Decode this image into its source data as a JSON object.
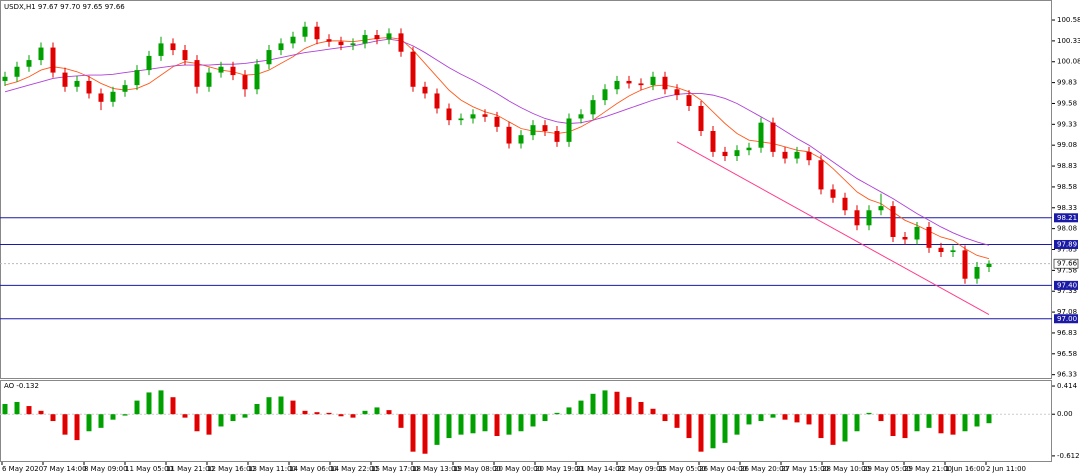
{
  "chart_data": [
    {
      "type": "candlestick",
      "title": "USDX,H1  97.67 97.70 97.65 97.66",
      "ylim": [
        96.29,
        100.82
      ],
      "yticks": [
        100.58,
        100.33,
        100.08,
        99.83,
        99.58,
        99.33,
        99.08,
        98.83,
        98.58,
        98.33,
        98.08,
        97.83,
        97.58,
        97.33,
        97.08,
        96.83,
        96.58,
        96.33
      ],
      "x_labels": [
        "6 May 2020",
        "7 May 14:00",
        "8 May 09:00",
        "11 May 05:00",
        "11 May 21:00",
        "12 May 16:00",
        "13 May 11:00",
        "14 May 06:00",
        "14 May 22:00",
        "15 May 17:00",
        "18 May 13:00",
        "19 May 08:00",
        "20 May 00:00",
        "20 May 19:00",
        "21 May 14:00",
        "22 May 09:00",
        "25 May 05:00",
        "26 May 04:00",
        "26 May 20:00",
        "27 May 15:00",
        "28 May 10:00",
        "29 May 05:00",
        "29 May 21:00",
        "1 Jun 16:00",
        "2 Jun 11:00"
      ],
      "up_color": "#00a000",
      "down_color": "#e00000",
      "candles": [
        [
          99.85,
          99.96,
          99.79,
          99.9
        ],
        [
          99.9,
          100.08,
          99.84,
          100.02
        ],
        [
          100.02,
          100.16,
          99.96,
          100.1
        ],
        [
          100.1,
          100.31,
          100.04,
          100.25
        ],
        [
          100.25,
          100.31,
          99.89,
          99.95
        ],
        [
          99.95,
          100.01,
          99.72,
          99.78
        ],
        [
          99.78,
          99.91,
          99.72,
          99.85
        ],
        [
          99.85,
          99.91,
          99.64,
          99.7
        ],
        [
          99.7,
          99.76,
          99.5,
          99.6
        ],
        [
          99.6,
          99.78,
          99.54,
          99.72
        ],
        [
          99.72,
          99.86,
          99.66,
          99.8
        ],
        [
          99.8,
          100.04,
          99.74,
          99.98
        ],
        [
          99.98,
          100.21,
          99.92,
          100.15
        ],
        [
          100.15,
          100.38,
          100.09,
          100.3
        ],
        [
          100.3,
          100.36,
          100.16,
          100.22
        ],
        [
          100.22,
          100.28,
          100.04,
          100.1
        ],
        [
          100.1,
          100.16,
          99.7,
          99.78
        ],
        [
          99.78,
          100.01,
          99.72,
          99.95
        ],
        [
          99.95,
          100.08,
          99.89,
          100.02
        ],
        [
          100.02,
          100.08,
          99.86,
          99.92
        ],
        [
          99.92,
          99.98,
          99.66,
          99.75
        ],
        [
          99.75,
          100.11,
          99.69,
          100.05
        ],
        [
          100.05,
          100.28,
          99.99,
          100.22
        ],
        [
          100.22,
          100.36,
          100.16,
          100.3
        ],
        [
          100.3,
          100.44,
          100.24,
          100.38
        ],
        [
          100.38,
          100.56,
          100.32,
          100.5
        ],
        [
          100.5,
          100.56,
          100.29,
          100.35
        ],
        [
          100.35,
          100.41,
          100.26,
          100.32
        ],
        [
          100.32,
          100.38,
          100.22,
          100.28
        ],
        [
          100.28,
          100.36,
          100.22,
          100.3
        ],
        [
          100.3,
          100.46,
          100.24,
          100.4
        ],
        [
          100.4,
          100.46,
          100.29,
          100.35
        ],
        [
          100.35,
          100.48,
          100.29,
          100.42
        ],
        [
          100.42,
          100.48,
          100.14,
          100.2
        ],
        [
          100.2,
          100.26,
          99.72,
          99.78
        ],
        [
          99.78,
          99.84,
          99.64,
          99.7
        ],
        [
          99.7,
          99.76,
          99.46,
          99.52
        ],
        [
          99.52,
          99.58,
          99.32,
          99.38
        ],
        [
          99.38,
          99.46,
          99.32,
          99.4
        ],
        [
          99.4,
          99.51,
          99.34,
          99.45
        ],
        [
          99.45,
          99.51,
          99.36,
          99.42
        ],
        [
          99.42,
          99.48,
          99.24,
          99.3
        ],
        [
          99.3,
          99.36,
          99.04,
          99.1
        ],
        [
          99.1,
          99.26,
          99.04,
          99.2
        ],
        [
          99.2,
          99.38,
          99.14,
          99.32
        ],
        [
          99.32,
          99.38,
          99.19,
          99.25
        ],
        [
          99.25,
          99.31,
          99.06,
          99.12
        ],
        [
          99.12,
          99.46,
          99.06,
          99.4
        ],
        [
          99.4,
          99.51,
          99.34,
          99.45
        ],
        [
          99.45,
          99.68,
          99.39,
          99.62
        ],
        [
          99.62,
          99.81,
          99.56,
          99.75
        ],
        [
          99.75,
          99.91,
          99.69,
          99.85
        ],
        [
          99.85,
          99.91,
          99.76,
          99.82
        ],
        [
          99.82,
          99.88,
          99.74,
          99.8
        ],
        [
          99.8,
          99.96,
          99.74,
          99.9
        ],
        [
          99.9,
          99.96,
          99.69,
          99.75
        ],
        [
          99.75,
          99.81,
          99.62,
          99.68
        ],
        [
          99.68,
          99.74,
          99.49,
          99.55
        ],
        [
          99.55,
          99.61,
          99.19,
          99.25
        ],
        [
          99.25,
          99.31,
          98.94,
          99.0
        ],
        [
          99.0,
          99.06,
          98.89,
          98.95
        ],
        [
          98.95,
          99.08,
          98.89,
          99.02
        ],
        [
          99.02,
          99.11,
          98.96,
          99.05
        ],
        [
          99.05,
          99.41,
          98.99,
          99.35
        ],
        [
          99.35,
          99.41,
          98.94,
          99.0
        ],
        [
          99.0,
          99.06,
          98.86,
          98.92
        ],
        [
          98.92,
          99.06,
          98.86,
          99.0
        ],
        [
          99.0,
          99.06,
          98.84,
          98.9
        ],
        [
          98.9,
          98.96,
          98.49,
          98.55
        ],
        [
          98.55,
          98.61,
          98.39,
          98.45
        ],
        [
          98.45,
          98.51,
          98.24,
          98.3
        ],
        [
          98.3,
          98.36,
          98.06,
          98.12
        ],
        [
          98.12,
          98.36,
          98.06,
          98.3
        ],
        [
          98.3,
          98.5,
          98.24,
          98.35
        ],
        [
          98.35,
          98.41,
          97.92,
          97.98
        ],
        [
          97.98,
          98.04,
          97.89,
          97.95
        ],
        [
          97.95,
          98.16,
          97.89,
          98.1
        ],
        [
          98.1,
          98.16,
          97.79,
          97.85
        ],
        [
          97.85,
          97.91,
          97.74,
          97.8
        ],
        [
          97.8,
          97.88,
          97.74,
          97.82
        ],
        [
          97.82,
          97.88,
          97.42,
          97.48
        ],
        [
          97.48,
          97.68,
          97.42,
          97.62
        ],
        [
          97.62,
          97.7,
          97.56,
          97.66
        ]
      ],
      "series": [
        {
          "color": "#ff5a1e",
          "values": [
            99.8,
            99.84,
            99.9,
            99.98,
            100.02,
            100.0,
            99.96,
            99.9,
            99.82,
            99.76,
            99.74,
            99.76,
            99.82,
            99.92,
            100.02,
            100.08,
            100.06,
            100.02,
            99.98,
            99.96,
            99.92,
            99.93,
            99.98,
            100.06,
            100.14,
            100.24,
            100.3,
            100.33,
            100.33,
            100.32,
            100.34,
            100.36,
            100.37,
            100.35,
            100.22,
            100.06,
            99.9,
            99.74,
            99.62,
            99.54,
            99.48,
            99.44,
            99.36,
            99.28,
            99.25,
            99.24,
            99.22,
            99.24,
            99.3,
            99.38,
            99.48,
            99.58,
            99.67,
            99.74,
            99.79,
            99.8,
            99.77,
            99.72,
            99.62,
            99.48,
            99.34,
            99.22,
            99.14,
            99.12,
            99.1,
            99.06,
            99.02,
            99.0,
            98.92,
            98.8,
            98.66,
            98.52,
            98.43,
            98.38,
            98.28,
            98.18,
            98.12,
            98.05,
            97.98,
            97.94,
            97.84,
            97.76,
            97.72
          ]
        },
        {
          "color": "#b040d8",
          "values": [
            99.72,
            99.76,
            99.8,
            99.84,
            99.88,
            99.9,
            99.91,
            99.92,
            99.92,
            99.93,
            99.95,
            99.97,
            99.99,
            100.01,
            100.03,
            100.04,
            100.04,
            100.04,
            100.05,
            100.05,
            100.06,
            100.08,
            100.1,
            100.13,
            100.16,
            100.19,
            100.21,
            100.23,
            100.25,
            100.27,
            100.3,
            100.33,
            100.35,
            100.33,
            100.27,
            100.19,
            100.1,
            100.01,
            99.93,
            99.86,
            99.78,
            99.7,
            99.61,
            99.53,
            99.46,
            99.4,
            99.36,
            99.34,
            99.35,
            99.38,
            99.42,
            99.47,
            99.52,
            99.57,
            99.62,
            99.66,
            99.69,
            99.7,
            99.7,
            99.68,
            99.64,
            99.58,
            99.5,
            99.42,
            99.34,
            99.25,
            99.16,
            99.08,
            98.98,
            98.88,
            98.78,
            98.68,
            98.6,
            98.52,
            98.44,
            98.35,
            98.26,
            98.18,
            98.1,
            98.03,
            97.97,
            97.92,
            97.88
          ]
        }
      ],
      "levels": [
        98.21,
        97.89,
        {
          "value": 97.4,
          "label": "97.40"
        },
        {
          "value": 97,
          "label": "97.00"
        }
      ],
      "level_color": "#1a1aa6",
      "last_price": 97.66,
      "trendline": {
        "from": [
          56,
          99.12
        ],
        "to": [
          82,
          97.05
        ],
        "color": "#ff3c8c"
      }
    },
    {
      "type": "histogram",
      "title": "AO -0.132",
      "ylim": [
        -0.687,
        0.488
      ],
      "yticks": [
        0.414,
        {
          "value": 0,
          "label": "0.00"
        },
        -0.612
      ],
      "up_color": "#00a000",
      "down_color": "#e00000",
      "values": [
        0.15,
        0.18,
        0.12,
        0.05,
        -0.1,
        -0.3,
        -0.38,
        -0.25,
        -0.2,
        -0.08,
        -0.02,
        0.2,
        0.32,
        0.35,
        0.25,
        -0.05,
        -0.25,
        -0.3,
        -0.18,
        -0.1,
        -0.05,
        0.15,
        0.25,
        0.26,
        0.2,
        0.05,
        0.03,
        0.02,
        -0.03,
        -0.05,
        0.05,
        0.1,
        0.06,
        -0.2,
        -0.55,
        -0.58,
        -0.45,
        -0.35,
        -0.3,
        -0.28,
        -0.25,
        -0.32,
        -0.3,
        -0.25,
        -0.18,
        -0.1,
        0.02,
        0.1,
        0.2,
        0.3,
        0.35,
        0.33,
        0.25,
        0.18,
        0.08,
        -0.1,
        -0.2,
        -0.35,
        -0.55,
        -0.5,
        -0.42,
        -0.3,
        -0.15,
        -0.1,
        -0.05,
        -0.08,
        -0.12,
        -0.15,
        -0.35,
        -0.45,
        -0.4,
        -0.25,
        0.02,
        -0.1,
        -0.32,
        -0.35,
        -0.25,
        -0.2,
        -0.28,
        -0.3,
        -0.25,
        -0.18,
        -0.132
      ]
    }
  ]
}
